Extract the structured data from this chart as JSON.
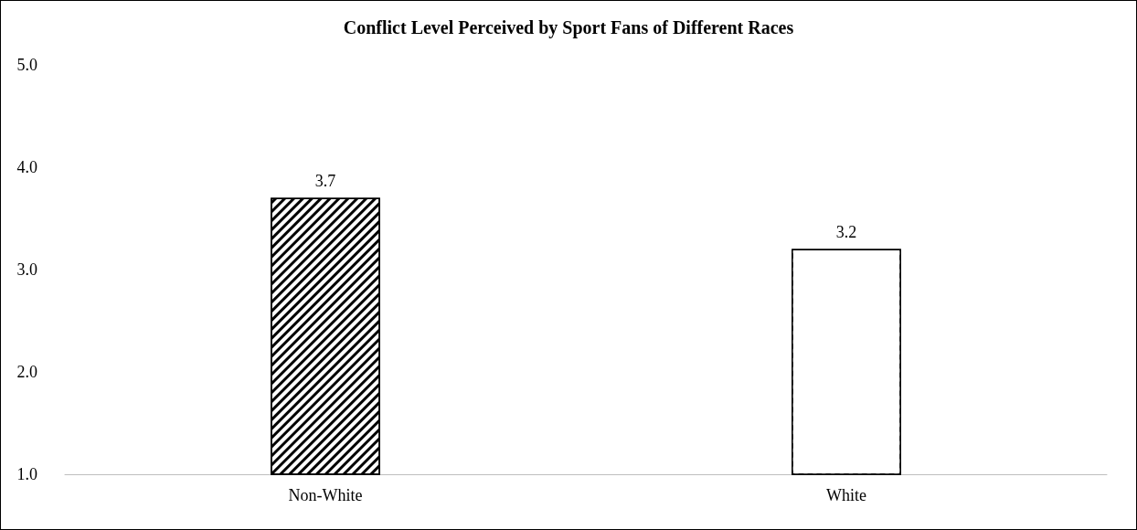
{
  "chart_data": {
    "type": "bar",
    "title": "Conflict Level Perceived by Sport Fans of Different Races",
    "categories": [
      "Non-White",
      "White"
    ],
    "values": [
      3.7,
      3.2
    ],
    "colors": [
      "#000000",
      "#ffffff"
    ],
    "ylim": [
      1,
      5
    ],
    "yticks": [
      {
        "value": 1,
        "label": "1.0"
      },
      {
        "value": 2,
        "label": "2.0"
      },
      {
        "value": 3,
        "label": "3.0"
      },
      {
        "value": 4,
        "label": "4.0"
      },
      {
        "value": 5,
        "label": "5.0"
      }
    ],
    "grid": false,
    "data_labels": true
  }
}
